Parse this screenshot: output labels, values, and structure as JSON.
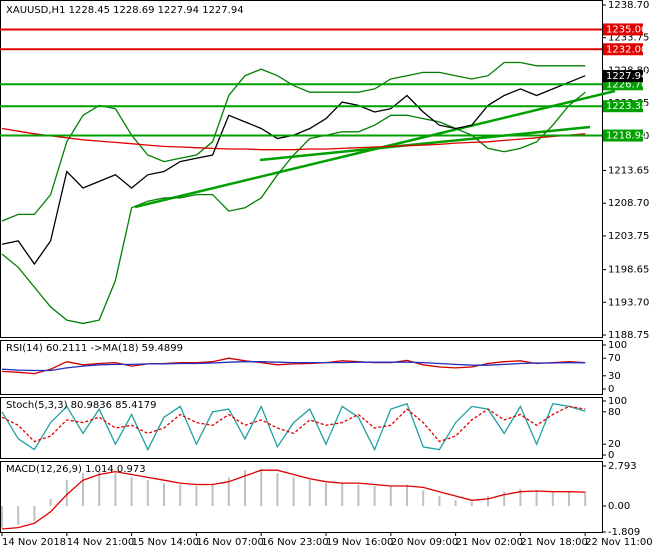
{
  "chart_data": [
    {
      "type": "line",
      "title": "XAUUSD,H1  1228.45 1228.69 1227.94 1227.94",
      "ylim": [
        1188.75,
        1238.7
      ],
      "yticks": [
        {
          "value": 1238.7,
          "label": "1238.70"
        },
        1233.75,
        {
          "value": 1228.8,
          "label": "1228.80"
        },
        1223.85,
        {
          "value": 1218.9,
          "label": "1218.90"
        },
        1213.65,
        {
          "value": 1208.7,
          "label": "1208.70"
        },
        1203.75,
        1198.65,
        {
          "value": 1193.7,
          "label": "1193.70"
        },
        1188.75
      ],
      "levels": [
        {
          "value": 1235,
          "label": "1235.00",
          "color": "#e00000"
        },
        {
          "value": 1232,
          "label": "1232.00",
          "color": "#e00000"
        },
        {
          "value": 1226.7,
          "label": "1226.70",
          "color": "#00a000"
        },
        {
          "value": 1223.38,
          "label": "1223.38",
          "color": "#00a000"
        },
        {
          "value": 1218.94,
          "label": "1218.94",
          "color": "#00a000"
        }
      ],
      "last": {
        "value": 1227.94,
        "label": "1227.94"
      },
      "series": [
        {
          "color": "#008000",
          "values": [
            1206,
            1207,
            1207,
            1210,
            1218,
            1222,
            1223.5,
            1223,
            1219,
            1216,
            1215,
            1215.5,
            1216,
            1218,
            1225,
            1228,
            1229,
            1228,
            1226.5,
            1225.5,
            1225.5,
            1225.5,
            1225.5,
            1226,
            1227.5,
            1228,
            1228.5,
            1228.5,
            1228,
            1227.5,
            1228,
            1230,
            1230,
            1229.5,
            1229.5,
            1229.5,
            1229.5
          ]
        },
        {
          "color": "#008000",
          "values": [
            1201,
            1199,
            1196,
            1193,
            1191,
            1190.5,
            1191,
            1197,
            1208,
            1209,
            1209.5,
            1209.5,
            1210,
            1210,
            1207.5,
            1208,
            1209.5,
            1213,
            1216,
            1218.5,
            1219,
            1219.5,
            1219.5,
            1220.5,
            1222,
            1222,
            1221.5,
            1221,
            1220,
            1219,
            1217,
            1216.5,
            1217,
            1218,
            1220.5,
            1223.5,
            1225.5
          ]
        },
        {
          "color": "#e00000",
          "values": [
            1220,
            1219.6,
            1219.2,
            1218.9,
            1218.6,
            1218.3,
            1218.1,
            1217.9,
            1217.7,
            1217.5,
            1217.3,
            1217.2,
            1217.1,
            1217,
            1216.9,
            1216.9,
            1216.8,
            1216.8,
            1216.8,
            1216.9,
            1216.9,
            1217,
            1217.1,
            1217.2,
            1217.3,
            1217.4,
            1217.5,
            1217.6,
            1217.8,
            1217.9,
            1218,
            1218.2,
            1218.4,
            1218.6,
            1218.8,
            1219,
            1219.2
          ]
        },
        {
          "color": "#000000",
          "values": [
            1202.5,
            1203,
            1199.5,
            1203,
            1213.5,
            1211,
            1212,
            1213,
            1211,
            1213,
            1213.5,
            1215,
            1215.5,
            1216,
            1222,
            1221,
            1220,
            1218.5,
            1219,
            1220,
            1221.5,
            1224,
            1223.5,
            1222.5,
            1223,
            1225,
            1222.5,
            1220.5,
            1220,
            1220.5,
            1223.5,
            1225,
            1226,
            1225,
            1226,
            1227,
            1228
          ]
        }
      ]
    },
    {
      "type": "line",
      "title": "RSI(14) 60.2111 ->MA(18) 59.4899",
      "ylim": [
        0,
        100
      ],
      "yticks": [
        100,
        70,
        30,
        0
      ],
      "series": [
        {
          "color": "#d00000",
          "values": [
            40,
            38,
            35,
            45,
            62,
            55,
            58,
            60,
            52,
            57,
            58,
            60,
            60,
            62,
            70,
            64,
            60,
            55,
            57,
            58,
            60,
            64,
            62,
            60,
            60,
            65,
            55,
            50,
            48,
            50,
            58,
            62,
            64,
            58,
            60,
            62,
            60
          ]
        },
        {
          "color": "#2030c0",
          "values": [
            45,
            43,
            42,
            42,
            48,
            52,
            55,
            56,
            56,
            57,
            57,
            58,
            58,
            59,
            61,
            62,
            62,
            61,
            60,
            60,
            60,
            60,
            61,
            61,
            61,
            61,
            60,
            58,
            56,
            54,
            54,
            56,
            58,
            59,
            59,
            60,
            59.5
          ]
        }
      ]
    },
    {
      "type": "line",
      "title": "Stoch(5,3,3) 80.9836 85.4179",
      "ylim": [
        0,
        100
      ],
      "yticks": [
        100,
        80,
        20,
        0
      ],
      "series": [
        {
          "color": "#20a0a0",
          "values": [
            80,
            30,
            10,
            60,
            90,
            40,
            85,
            20,
            75,
            10,
            70,
            90,
            20,
            80,
            85,
            30,
            90,
            15,
            60,
            85,
            20,
            90,
            70,
            10,
            85,
            95,
            15,
            10,
            60,
            90,
            85,
            40,
            90,
            20,
            95,
            90,
            81
          ]
        },
        {
          "color": "#e00000",
          "dash": true,
          "values": [
            70,
            55,
            25,
            35,
            65,
            60,
            70,
            50,
            55,
            40,
            50,
            75,
            60,
            55,
            75,
            55,
            65,
            50,
            40,
            65,
            55,
            60,
            75,
            50,
            55,
            85,
            60,
            25,
            35,
            65,
            85,
            65,
            75,
            55,
            75,
            90,
            85
          ]
        }
      ]
    },
    {
      "type": "bar",
      "title": "MACD(12,26,9) 1.014 0.973",
      "ylim": [
        -1.809,
        2.793
      ],
      "yticks": [
        2.793,
        {
          "value": 0,
          "label": "0.00"
        },
        -1.809
      ],
      "categories": [
        "14 Nov 2018",
        null,
        null,
        null,
        "14 Nov 21:00",
        null,
        null,
        null,
        "15 Nov 14:00",
        null,
        null,
        null,
        "16 Nov 07:00",
        null,
        null,
        null,
        "16 Nov 23:00",
        null,
        null,
        null,
        "19 Nov 16:00",
        null,
        null,
        null,
        "20 Nov 09:00",
        null,
        null,
        null,
        "21 Nov 02:00",
        null,
        null,
        null,
        "21 Nov 18:00",
        null,
        null,
        null,
        "22 Nov 11:00"
      ],
      "series": [
        {
          "color": "#c0c0c0",
          "values": [
            -1.5,
            -1.3,
            -1.0,
            0.5,
            1.8,
            2.3,
            2.4,
            2.3,
            2.0,
            1.8,
            1.6,
            1.5,
            1.4,
            1.5,
            2.0,
            2.5,
            2.6,
            2.3,
            2.0,
            1.8,
            1.6,
            1.6,
            1.5,
            1.4,
            1.4,
            1.5,
            1.1,
            0.7,
            0.4,
            0.3,
            0.7,
            1.0,
            1.2,
            1.1,
            1.0,
            1.0,
            1.0
          ]
        },
        {
          "type": "line",
          "color": "#e00000",
          "values": [
            -1.6,
            -1.5,
            -1.2,
            -0.4,
            0.8,
            1.8,
            2.2,
            2.4,
            2.2,
            2.0,
            1.8,
            1.6,
            1.5,
            1.5,
            1.7,
            2.1,
            2.5,
            2.5,
            2.2,
            1.9,
            1.7,
            1.6,
            1.6,
            1.5,
            1.4,
            1.4,
            1.3,
            1.0,
            0.7,
            0.4,
            0.5,
            0.8,
            1.0,
            1.05,
            1.0,
            1.0,
            0.97
          ]
        }
      ]
    }
  ]
}
